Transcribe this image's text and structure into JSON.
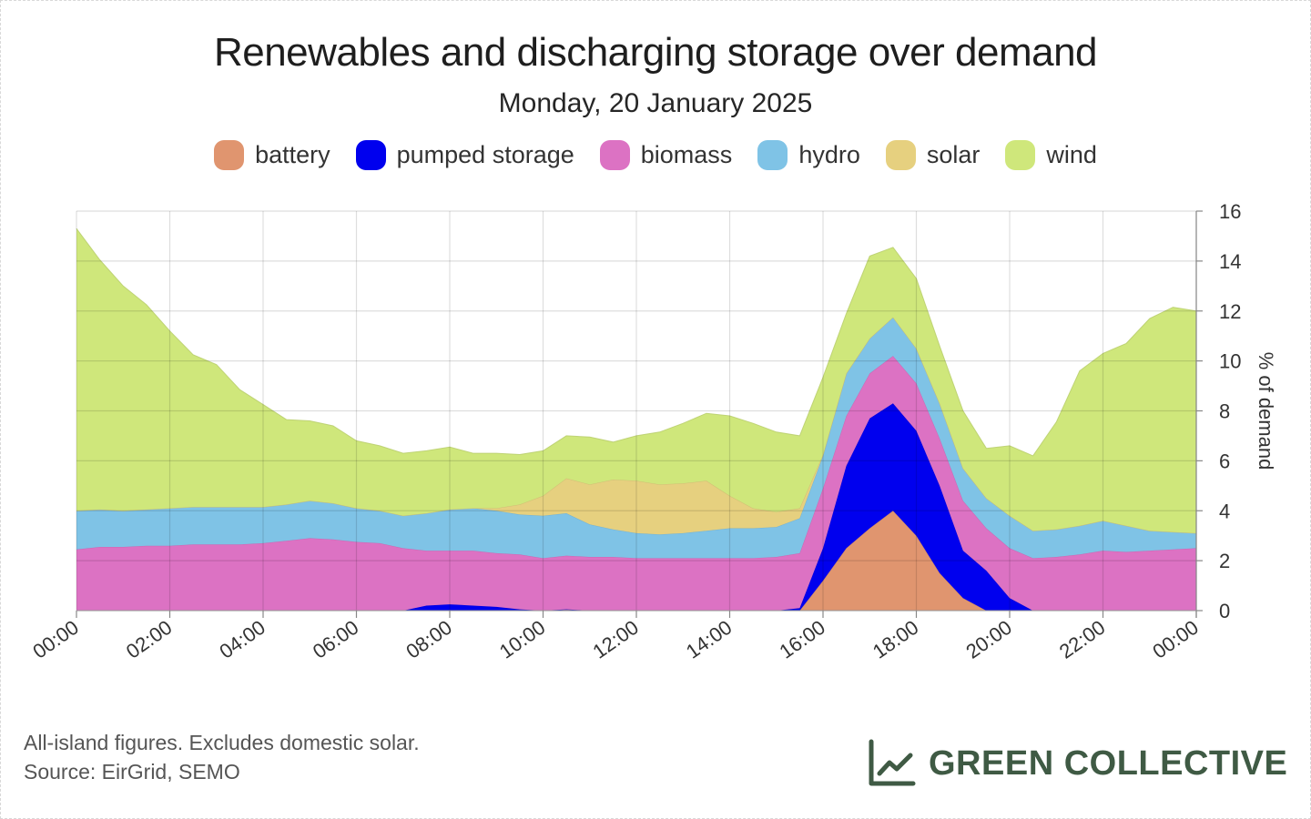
{
  "title": "Renewables and discharging storage over demand",
  "subtitle": "Monday, 20 January 2025",
  "footnote": {
    "line1": "All-island figures. Excludes domestic solar.",
    "line2": "Source: EirGrid, SEMO"
  },
  "brand": {
    "name": "GREEN COLLECTIVE",
    "icon": "line-chart-icon",
    "color": "#3f5a44"
  },
  "legend": [
    {
      "name": "battery",
      "color": "#e0956f"
    },
    {
      "name": "pumped storage",
      "color": "#0000ee"
    },
    {
      "name": "biomass",
      "color": "#dc72c3"
    },
    {
      "name": "hydro",
      "color": "#7fc3e6"
    },
    {
      "name": "solar",
      "color": "#e6d07f"
    },
    {
      "name": "wind",
      "color": "#cfe77b"
    }
  ],
  "chart_data": {
    "type": "area",
    "stacked": true,
    "x": [
      "00:00",
      "00:30",
      "01:00",
      "01:30",
      "02:00",
      "02:30",
      "03:00",
      "03:30",
      "04:00",
      "04:30",
      "05:00",
      "05:30",
      "06:00",
      "06:30",
      "07:00",
      "07:30",
      "08:00",
      "08:30",
      "09:00",
      "09:30",
      "10:00",
      "10:30",
      "11:00",
      "11:30",
      "12:00",
      "12:30",
      "13:00",
      "13:30",
      "14:00",
      "14:30",
      "15:00",
      "15:30",
      "16:00",
      "16:30",
      "17:00",
      "17:30",
      "18:00",
      "18:30",
      "19:00",
      "19:30",
      "20:00",
      "20:30",
      "21:00",
      "21:30",
      "22:00",
      "22:30",
      "23:00",
      "23:30",
      "24:00"
    ],
    "x_tick_labels": [
      "00:00",
      "02:00",
      "04:00",
      "06:00",
      "08:00",
      "10:00",
      "12:00",
      "14:00",
      "16:00",
      "18:00",
      "20:00",
      "22:00",
      "00:00"
    ],
    "ylabel": "% of demand",
    "ylim": [
      0,
      16
    ],
    "y_ticks": [
      0,
      2,
      4,
      6,
      8,
      10,
      12,
      14,
      16
    ],
    "grid": true,
    "y_axis_side": "right",
    "legend_position": "top",
    "series": [
      {
        "name": "battery",
        "color": "#e0956f",
        "values": [
          0,
          0,
          0,
          0,
          0,
          0,
          0,
          0,
          0,
          0,
          0,
          0,
          0,
          0,
          0,
          0,
          0,
          0,
          0,
          0,
          0,
          0.05,
          0,
          0,
          0,
          0,
          0,
          0,
          0,
          0,
          0,
          0,
          1.2,
          2.5,
          3.3,
          4.0,
          3.0,
          1.5,
          0.5,
          0,
          0,
          0,
          0,
          0,
          0,
          0,
          0,
          0,
          0
        ]
      },
      {
        "name": "pumped storage",
        "color": "#0000ee",
        "values": [
          0,
          0,
          0,
          0,
          0,
          0,
          0,
          0,
          0,
          0,
          0,
          0,
          0,
          0,
          0,
          0.2,
          0.25,
          0.2,
          0.15,
          0.05,
          0,
          0,
          0,
          0,
          0,
          0,
          0,
          0,
          0,
          0,
          0,
          0.1,
          1.3,
          3.3,
          4.4,
          4.3,
          4.2,
          3.5,
          1.9,
          1.6,
          0.5,
          0,
          0,
          0,
          0,
          0,
          0,
          0,
          0
        ]
      },
      {
        "name": "biomass",
        "color": "#dc72c3",
        "values": [
          2.45,
          2.55,
          2.55,
          2.6,
          2.6,
          2.65,
          2.65,
          2.65,
          2.7,
          2.8,
          2.9,
          2.85,
          2.75,
          2.7,
          2.5,
          2.2,
          2.15,
          2.2,
          2.15,
          2.2,
          2.1,
          2.15,
          2.15,
          2.15,
          2.1,
          2.1,
          2.1,
          2.1,
          2.1,
          2.1,
          2.15,
          2.2,
          2.4,
          2.0,
          1.8,
          1.9,
          1.9,
          1.9,
          2.0,
          1.7,
          2.0,
          2.1,
          2.15,
          2.25,
          2.4,
          2.35,
          2.4,
          2.45,
          2.5
        ]
      },
      {
        "name": "hydro",
        "color": "#7fc3e6",
        "values": [
          1.55,
          1.5,
          1.45,
          1.45,
          1.5,
          1.5,
          1.5,
          1.5,
          1.45,
          1.45,
          1.5,
          1.45,
          1.35,
          1.3,
          1.3,
          1.5,
          1.65,
          1.7,
          1.7,
          1.6,
          1.7,
          1.7,
          1.3,
          1.1,
          1.0,
          0.95,
          1.0,
          1.1,
          1.2,
          1.2,
          1.2,
          1.4,
          1.3,
          1.7,
          1.4,
          1.55,
          1.4,
          1.4,
          1.3,
          1.2,
          1.3,
          1.1,
          1.1,
          1.15,
          1.2,
          1.05,
          0.8,
          0.7,
          0.6
        ]
      },
      {
        "name": "solar",
        "color": "#e6d07f",
        "values": [
          0,
          0,
          0,
          0,
          0,
          0,
          0,
          0,
          0,
          0,
          0,
          0,
          0,
          0,
          0,
          0,
          0,
          0,
          0.1,
          0.4,
          0.8,
          1.4,
          1.6,
          2.0,
          2.1,
          2.0,
          2.0,
          2.0,
          1.3,
          0.8,
          0.6,
          0.4,
          0.05,
          0,
          0,
          0,
          0,
          0,
          0,
          0,
          0,
          0,
          0,
          0,
          0,
          0,
          0,
          0,
          0
        ]
      },
      {
        "name": "wind",
        "color": "#cfe77b",
        "values": [
          11.3,
          10.0,
          9.0,
          8.2,
          7.1,
          6.1,
          5.7,
          4.7,
          4.1,
          3.4,
          3.2,
          3.1,
          2.7,
          2.6,
          2.5,
          2.5,
          2.5,
          2.2,
          2.2,
          2.0,
          1.8,
          1.7,
          1.9,
          1.5,
          1.8,
          2.1,
          2.4,
          2.7,
          3.2,
          3.4,
          3.2,
          2.9,
          3.1,
          2.4,
          3.3,
          2.8,
          2.8,
          2.3,
          2.3,
          2.0,
          2.8,
          3.0,
          4.3,
          6.2,
          6.7,
          7.3,
          8.5,
          9.0,
          8.9
        ]
      }
    ]
  }
}
